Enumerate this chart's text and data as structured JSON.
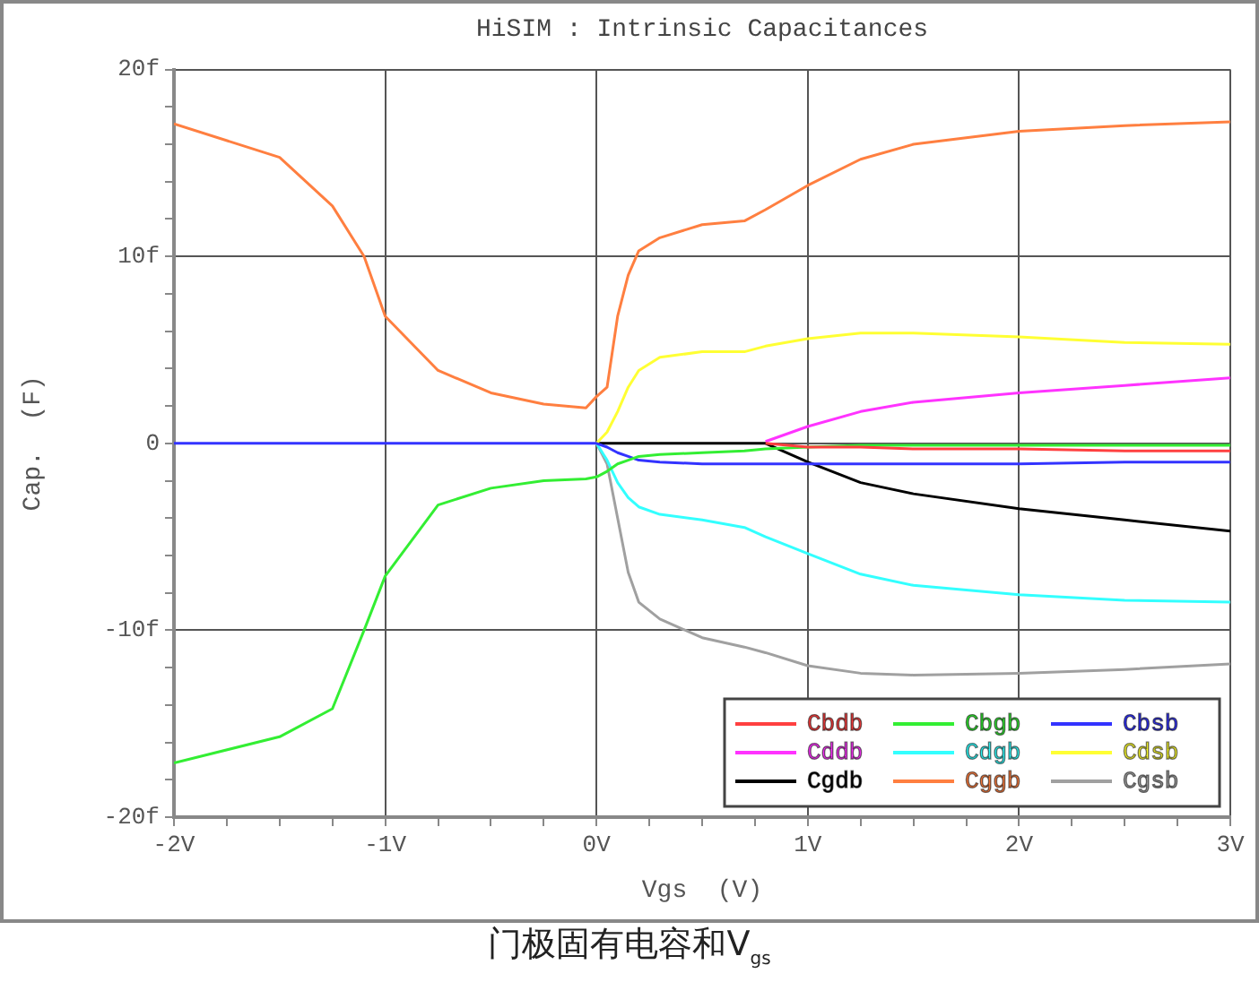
{
  "chart_data": {
    "type": "line",
    "title": "HiSIM : Intrinsic Capacitances",
    "xlabel": "Vgs  (V)",
    "ylabel": "Cap.  (F)",
    "annotations": [
      "门极固有电容和V$_{gs}$"
    ],
    "x": [
      -2,
      -1.5,
      -1.25,
      -1.1,
      -1,
      -0.75,
      -0.5,
      -0.25,
      -0.05,
      0,
      0.05,
      0.1,
      0.15,
      0.2,
      0.3,
      0.5,
      0.7,
      0.8,
      1,
      1.25,
      1.5,
      2,
      2.5,
      3
    ],
    "series": [
      {
        "name": "Cbdb",
        "color": "#ff4040",
        "values": [
          null,
          null,
          null,
          null,
          null,
          null,
          null,
          null,
          null,
          null,
          null,
          null,
          null,
          null,
          null,
          null,
          null,
          0,
          -0.2,
          -0.2,
          -0.3,
          -0.3,
          -0.4,
          -0.4
        ]
      },
      {
        "name": "Cbgb",
        "color": "#33ee33",
        "values": [
          -17.1,
          -15.7,
          -14.2,
          -10.0,
          -7.1,
          -3.3,
          -2.4,
          -2.0,
          -1.9,
          -1.8,
          -1.5,
          -1.1,
          -0.9,
          -0.7,
          -0.6,
          -0.5,
          -0.4,
          -0.3,
          -0.2,
          -0.1,
          -0.1,
          -0.1,
          -0.1,
          -0.1
        ]
      },
      {
        "name": "Cbsb",
        "color": "#3333ff",
        "values": [
          0,
          0,
          0,
          0,
          0,
          0,
          0,
          0,
          0,
          0,
          -0.2,
          -0.5,
          -0.7,
          -0.9,
          -1.0,
          -1.1,
          -1.1,
          -1.1,
          -1.1,
          -1.1,
          -1.1,
          -1.1,
          -1.0,
          -1.0
        ]
      },
      {
        "name": "Cddb",
        "color": "#ff33ff",
        "values": [
          null,
          null,
          null,
          null,
          null,
          null,
          null,
          null,
          null,
          null,
          null,
          null,
          null,
          null,
          null,
          null,
          null,
          0.1,
          0.9,
          1.7,
          2.2,
          2.7,
          3.1,
          3.5
        ]
      },
      {
        "name": "Cdgb",
        "color": "#33ffff",
        "values": [
          null,
          null,
          null,
          null,
          null,
          null,
          null,
          null,
          null,
          0,
          -0.9,
          -2.1,
          -2.9,
          -3.4,
          -3.8,
          -4.1,
          -4.5,
          -5.0,
          -5.9,
          -7.0,
          -7.6,
          -8.1,
          -8.4,
          -8.5
        ]
      },
      {
        "name": "Cdsb",
        "color": "#ffff33",
        "values": [
          null,
          null,
          null,
          null,
          null,
          null,
          null,
          null,
          null,
          0,
          0.6,
          1.7,
          3.0,
          3.9,
          4.6,
          4.9,
          4.9,
          5.2,
          5.6,
          5.9,
          5.9,
          5.7,
          5.4,
          5.3
        ]
      },
      {
        "name": "Cgdb",
        "color": "#000000",
        "values": [
          null,
          null,
          null,
          null,
          null,
          null,
          null,
          null,
          null,
          0,
          0,
          0,
          0,
          0,
          0,
          0,
          0,
          0,
          -1.0,
          -2.1,
          -2.7,
          -3.5,
          -4.1,
          -4.7
        ]
      },
      {
        "name": "Cggb",
        "color": "#ff7f40",
        "values": [
          17.1,
          15.3,
          12.7,
          10.0,
          6.8,
          3.9,
          2.7,
          2.1,
          1.9,
          2.5,
          3.0,
          6.8,
          9.0,
          10.3,
          11.0,
          11.7,
          11.9,
          12.5,
          13.8,
          15.2,
          16.0,
          16.7,
          17.0,
          17.2
        ]
      },
      {
        "name": "Cgsb",
        "color": "#a0a0a0",
        "values": [
          null,
          null,
          null,
          null,
          null,
          null,
          null,
          null,
          null,
          0,
          -1.1,
          -4.0,
          -6.9,
          -8.5,
          -9.4,
          -10.4,
          -10.9,
          -11.2,
          -11.9,
          -12.3,
          -12.4,
          -12.3,
          -12.1,
          -11.8
        ]
      }
    ],
    "xlim": [
      -2,
      3
    ],
    "xticks": [
      {
        "value": -2,
        "label": "-2V"
      },
      {
        "value": -1.75,
        "label": null
      },
      {
        "value": -1.5,
        "label": null
      },
      {
        "value": -1.25,
        "label": null
      },
      {
        "value": -1,
        "label": "-1V"
      },
      {
        "value": -0.75,
        "label": null
      },
      {
        "value": -0.5,
        "label": null
      },
      {
        "value": -0.25,
        "label": null
      },
      {
        "value": 0,
        "label": "0V"
      },
      {
        "value": 0.25,
        "label": null
      },
      {
        "value": 0.5,
        "label": null
      },
      {
        "value": 0.75,
        "label": null
      },
      {
        "value": 1,
        "label": "1V"
      },
      {
        "value": 1.25,
        "label": null
      },
      {
        "value": 1.5,
        "label": null
      },
      {
        "value": 1.75,
        "label": null
      },
      {
        "value": 2,
        "label": "2V"
      },
      {
        "value": 2.25,
        "label": null
      },
      {
        "value": 2.5,
        "label": null
      },
      {
        "value": 2.75,
        "label": null
      },
      {
        "value": 3,
        "label": "3V"
      }
    ],
    "ylim": [
      -20,
      20
    ],
    "yticks": [
      {
        "value": -20,
        "label": "-20f"
      },
      {
        "value": -18,
        "label": null
      },
      {
        "value": -16,
        "label": null
      },
      {
        "value": -14,
        "label": null
      },
      {
        "value": -12,
        "label": null
      },
      {
        "value": -10,
        "label": "-10f"
      },
      {
        "value": -8,
        "label": null
      },
      {
        "value": -6,
        "label": null
      },
      {
        "value": -4,
        "label": null
      },
      {
        "value": -2,
        "label": null
      },
      0,
      {
        "value": 2,
        "label": null
      },
      {
        "value": 4,
        "label": null
      },
      {
        "value": 6,
        "label": null
      },
      {
        "value": 8,
        "label": null
      },
      {
        "value": 10,
        "label": "10f"
      },
      {
        "value": 12,
        "label": null
      },
      {
        "value": 14,
        "label": null
      },
      {
        "value": 16,
        "label": null
      },
      {
        "value": 18,
        "label": null
      },
      {
        "value": 20,
        "label": "20f"
      }
    ],
    "grid": true,
    "legend": "bottom right"
  }
}
